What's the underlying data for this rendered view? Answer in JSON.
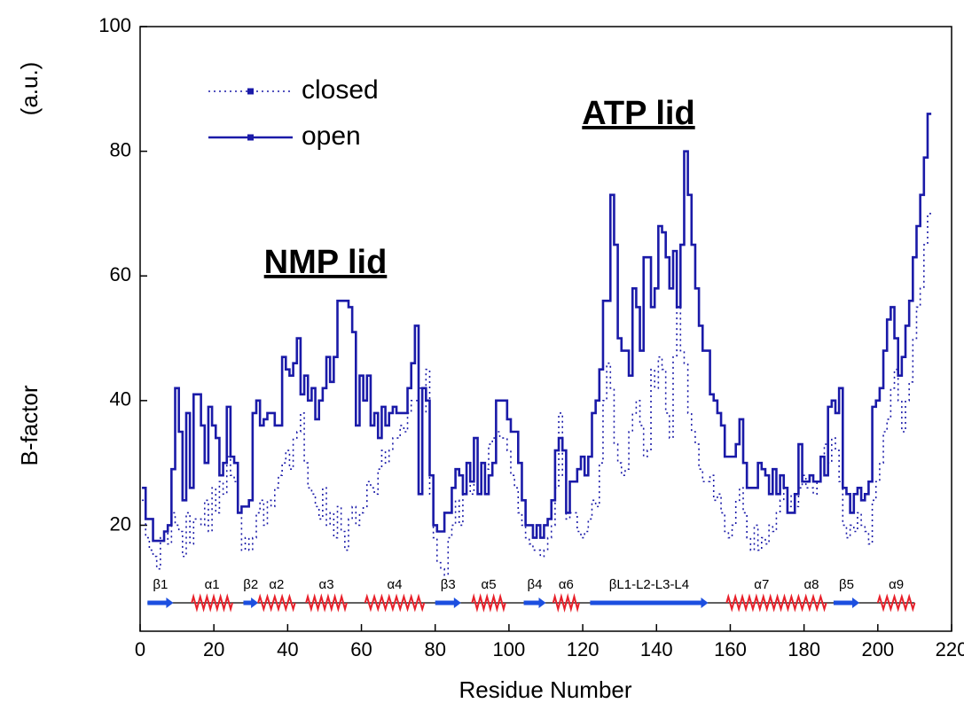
{
  "chart_data": {
    "type": "line",
    "drawstyle": "steps-mid",
    "xlabel": "Residue Number",
    "ylabel": "B-factor",
    "ylabel_unit": "(a.u.)",
    "xlim": [
      0,
      220
    ],
    "xticks": [
      0,
      20,
      40,
      60,
      80,
      100,
      120,
      140,
      160,
      180,
      200,
      220
    ],
    "ylim": [
      3,
      100
    ],
    "yticks": [
      20,
      40,
      60,
      80,
      100
    ],
    "legend": "upper left",
    "annotations": [
      "NMP lid",
      "ATP lid"
    ],
    "x": [
      1,
      2,
      3,
      4,
      5,
      6,
      7,
      8,
      9,
      10,
      11,
      12,
      13,
      14,
      15,
      16,
      17,
      18,
      19,
      20,
      21,
      22,
      23,
      24,
      25,
      26,
      27,
      28,
      29,
      30,
      31,
      32,
      33,
      34,
      35,
      36,
      37,
      38,
      39,
      40,
      41,
      42,
      43,
      44,
      45,
      46,
      47,
      48,
      49,
      50,
      51,
      52,
      53,
      54,
      55,
      56,
      57,
      58,
      59,
      60,
      61,
      62,
      63,
      64,
      65,
      66,
      67,
      68,
      69,
      70,
      71,
      72,
      73,
      74,
      75,
      76,
      77,
      78,
      79,
      80,
      81,
      82,
      83,
      84,
      85,
      86,
      87,
      88,
      89,
      90,
      91,
      92,
      93,
      94,
      95,
      96,
      97,
      98,
      99,
      100,
      101,
      102,
      103,
      104,
      105,
      106,
      107,
      108,
      109,
      110,
      111,
      112,
      113,
      114,
      115,
      116,
      117,
      118,
      119,
      120,
      121,
      122,
      123,
      124,
      125,
      126,
      127,
      128,
      129,
      130,
      131,
      132,
      133,
      134,
      135,
      136,
      137,
      138,
      139,
      140,
      141,
      142,
      143,
      144,
      145,
      146,
      147,
      148,
      149,
      150,
      151,
      152,
      153,
      154,
      155,
      156,
      157,
      158,
      159,
      160,
      161,
      162,
      163,
      164,
      165,
      166,
      167,
      168,
      169,
      170,
      171,
      172,
      173,
      174,
      175,
      176,
      177,
      178,
      179,
      180,
      181,
      182,
      183,
      184,
      185,
      186,
      187,
      188,
      189,
      190,
      191,
      192,
      193,
      194,
      195,
      196,
      197,
      198,
      199,
      200,
      201,
      202,
      203,
      204,
      205,
      206,
      207,
      208,
      209,
      210,
      211,
      212,
      213,
      214
    ],
    "series": [
      {
        "name": "closed",
        "color": "#1a1aa8",
        "linestyle": "dotted",
        "values": [
          24,
          18,
          16,
          15,
          13,
          18,
          19,
          17,
          22,
          20,
          19,
          15,
          22,
          17,
          21,
          21,
          20,
          24,
          19,
          26,
          22,
          27,
          25,
          31,
          28,
          27,
          22,
          16,
          18,
          16,
          18,
          22,
          24,
          20,
          24,
          23,
          26,
          28,
          30,
          32,
          29,
          34,
          35,
          38,
          30,
          26,
          25,
          23,
          21,
          26,
          20,
          22,
          18,
          23,
          19,
          16,
          21,
          23,
          20,
          22,
          23,
          27,
          26,
          25,
          29,
          32,
          30,
          32,
          34,
          34,
          36,
          35,
          38,
          40,
          40,
          42,
          38,
          45,
          25,
          18,
          14,
          13,
          12,
          18,
          20,
          24,
          20,
          26,
          28,
          25,
          30,
          27,
          26,
          29,
          33,
          34,
          35,
          34,
          34,
          32,
          28,
          26,
          22,
          20,
          18,
          17,
          16,
          16,
          15,
          16,
          18,
          20,
          26,
          38,
          28,
          21,
          22,
          22,
          19,
          18,
          19,
          21,
          24,
          23,
          30,
          40,
          46,
          42,
          33,
          30,
          28,
          29,
          35,
          38,
          40,
          36,
          31,
          32,
          45,
          42,
          47,
          45,
          38,
          34,
          47,
          55,
          48,
          46,
          38,
          35,
          33,
          29,
          27,
          27,
          28,
          24,
          25,
          22,
          19,
          18,
          20,
          24,
          26,
          22,
          18,
          16,
          20,
          16,
          18,
          17,
          20,
          19,
          22,
          24,
          26,
          23,
          25,
          23,
          26,
          28,
          26,
          26,
          25,
          27,
          28,
          33,
          30,
          34,
          32,
          27,
          20,
          18,
          20,
          19,
          22,
          20,
          19,
          17,
          24,
          27,
          30,
          35,
          37,
          42,
          45,
          40,
          35,
          40,
          43,
          50,
          55,
          58,
          65,
          70
        ]
      },
      {
        "name": "open",
        "color": "#1a1aa8",
        "linestyle": "solid",
        "values": [
          26,
          21,
          21,
          17.5,
          17.5,
          17.5,
          19,
          20,
          29,
          42,
          35,
          24,
          38,
          26,
          41,
          41,
          36,
          30,
          39,
          36,
          34,
          28,
          30,
          39,
          31,
          30,
          22,
          23,
          23,
          24,
          38,
          40,
          36,
          37,
          38,
          38,
          36,
          36,
          47,
          45,
          44,
          46,
          50,
          41,
          44,
          40,
          42,
          37,
          40,
          42,
          47,
          43,
          47,
          56,
          56,
          56,
          55,
          51,
          36,
          44,
          40,
          44,
          36,
          38,
          34,
          39,
          36,
          38,
          39,
          38,
          38,
          38,
          42,
          46,
          52,
          25,
          42,
          40,
          28,
          20,
          19,
          19,
          22,
          22,
          26,
          29,
          28,
          25,
          30,
          27,
          34,
          25,
          30,
          25,
          28,
          30,
          40,
          40,
          40,
          37,
          35,
          35,
          30,
          24,
          20,
          20,
          18,
          20,
          18,
          20,
          21,
          24,
          32,
          34,
          32,
          22,
          27,
          27,
          29,
          31,
          28,
          31,
          38,
          40,
          45,
          56,
          56,
          73,
          65,
          50,
          48,
          48,
          44,
          58,
          55,
          48,
          63,
          63,
          55,
          58,
          68,
          67,
          63,
          58,
          64,
          55,
          65,
          80,
          73,
          65,
          58,
          52,
          48,
          48,
          41,
          40,
          38,
          36,
          31,
          31,
          31,
          33,
          37,
          30,
          26,
          26,
          26,
          30,
          29,
          28,
          25,
          29,
          25,
          28,
          26,
          22,
          22,
          25,
          33,
          27,
          27,
          28,
          27,
          27,
          31,
          28,
          39,
          40,
          38,
          42,
          26,
          25,
          22,
          25,
          26,
          24,
          25,
          27,
          39,
          40,
          42,
          48,
          53,
          55,
          50,
          44,
          47,
          52,
          56,
          63,
          68,
          73,
          79,
          86
        ]
      }
    ],
    "secondary_structure": [
      {
        "label": "β1",
        "kind": "strand",
        "start": 2,
        "end": 9
      },
      {
        "label": "α1",
        "kind": "helix",
        "start": 14,
        "end": 25
      },
      {
        "label": "β2",
        "kind": "strand",
        "start": 28,
        "end": 32
      },
      {
        "label": "α2",
        "kind": "helix",
        "start": 32,
        "end": 42
      },
      {
        "label": "α3",
        "kind": "helix",
        "start": 45,
        "end": 56
      },
      {
        "label": "α4",
        "kind": "helix",
        "start": 61,
        "end": 77
      },
      {
        "label": "β3",
        "kind": "strand",
        "start": 80,
        "end": 87
      },
      {
        "label": "α5",
        "kind": "helix",
        "start": 90,
        "end": 99
      },
      {
        "label": "β4",
        "kind": "strand",
        "start": 104,
        "end": 110
      },
      {
        "label": "α6",
        "kind": "helix",
        "start": 112,
        "end": 119
      },
      {
        "label": "βL1-L2-L3-L4",
        "kind": "strand",
        "start": 122,
        "end": 154
      },
      {
        "label": "α7",
        "kind": "helix",
        "start": 159,
        "end": 178
      },
      {
        "label": "α8",
        "kind": "helix",
        "start": 178,
        "end": 186
      },
      {
        "label": "β5",
        "kind": "strand",
        "start": 188,
        "end": 195
      },
      {
        "label": "α9",
        "kind": "helix",
        "start": 200,
        "end": 210
      }
    ]
  }
}
